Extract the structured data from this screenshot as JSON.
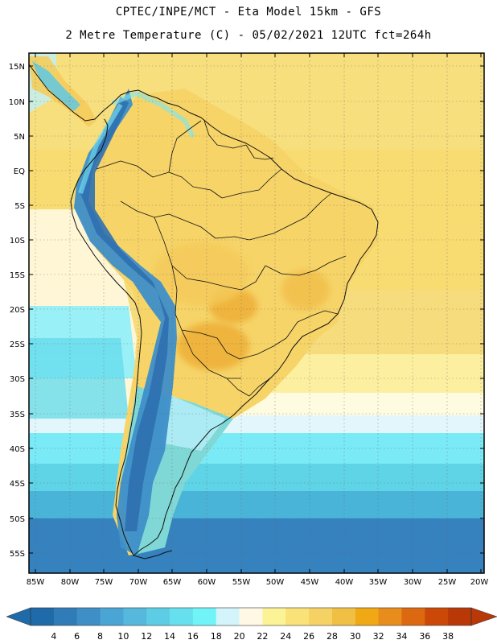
{
  "header": {
    "title_line1": "CPTEC/INPE/MCT -  Eta Model 15km - GFS",
    "title_line2": "2 Metre Temperature (C) - 05/02/2021 12UTC fct=264h"
  },
  "map": {
    "lat_labels": [
      "15N",
      "10N",
      "5N",
      "EQ",
      "5S",
      "10S",
      "15S",
      "20S",
      "25S",
      "30S",
      "35S",
      "40S",
      "45S",
      "50S",
      "55S"
    ],
    "lon_labels": [
      "85W",
      "80W",
      "75W",
      "70W",
      "65W",
      "60W",
      "55W",
      "50W",
      "45W",
      "40W",
      "35W",
      "30W",
      "25W",
      "20W"
    ]
  },
  "colorbar": {
    "labels": [
      "4",
      "6",
      "8",
      "10",
      "12",
      "14",
      "16",
      "18",
      "20",
      "22",
      "24",
      "26",
      "28",
      "30",
      "32",
      "34",
      "36",
      "38"
    ],
    "colors": [
      "#1f6aa8",
      "#2f7cb8",
      "#3f8ec6",
      "#4aa4d4",
      "#55b8dc",
      "#5ccde4",
      "#66e0ee",
      "#70f4f8",
      "#d4f4fc",
      "#fff8e4",
      "#fcf296",
      "#fae178",
      "#f6d264",
      "#f0c044",
      "#f0a814",
      "#e88c1c",
      "#dc6810",
      "#cc4808",
      "#b83808"
    ]
  }
}
